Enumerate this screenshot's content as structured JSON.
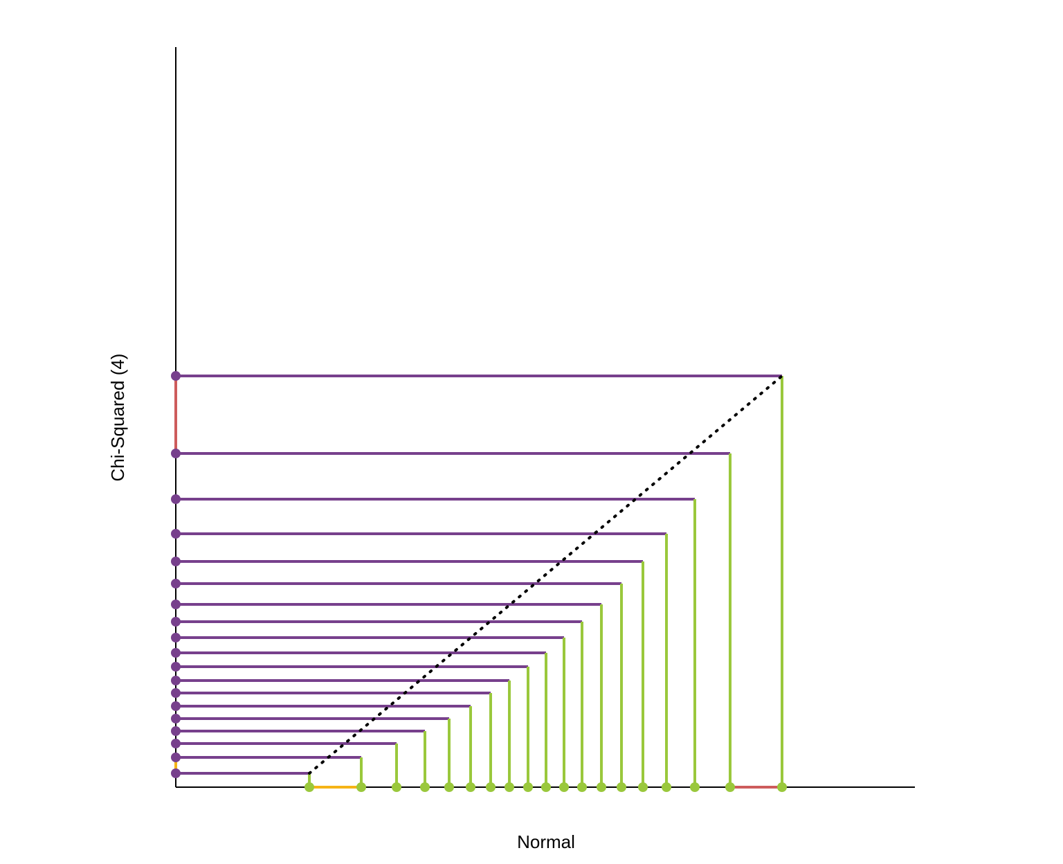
{
  "chart_data": {
    "type": "qq",
    "x_label": "Normal",
    "y_label": "Chi-Squared (4)",
    "x": [
      1.93,
      2.68,
      3.19,
      3.6,
      3.95,
      4.26,
      4.55,
      4.82,
      5.09,
      5.35,
      5.61,
      5.87,
      6.15,
      6.44,
      6.75,
      7.09,
      7.5,
      8.01,
      8.76
    ],
    "values": [
      0.2,
      0.43,
      0.63,
      0.81,
      0.99,
      1.17,
      1.36,
      1.54,
      1.74,
      1.94,
      2.16,
      2.39,
      2.64,
      2.94,
      3.26,
      3.66,
      4.16,
      4.82,
      5.94
    ],
    "xlim": [
      0,
      10.68
    ],
    "ylim": [
      0,
      10.69
    ],
    "x_color": "#9ac83c",
    "y_color": "#77408c",
    "first_gap_color": "#f5b417",
    "last_gap_color": "#cd5c5c"
  }
}
